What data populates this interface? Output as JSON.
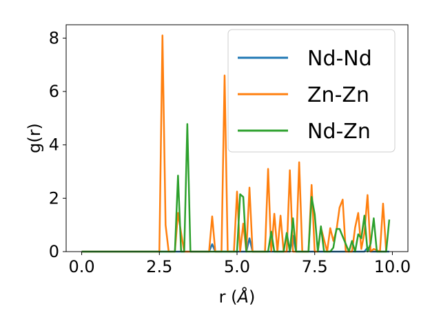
{
  "chart_data": {
    "type": "line",
    "title": "",
    "xlabel": "r (Å)",
    "xlabel_parts": {
      "prefix": "r (",
      "unit": "Å",
      "suffix": ")"
    },
    "ylabel": "g(r)",
    "xlim": [
      -0.5,
      10.5
    ],
    "ylim": [
      0,
      8.5
    ],
    "xticks": [
      0.0,
      2.5,
      5.0,
      7.5,
      10.0
    ],
    "xtick_labels": [
      "0.0",
      "2.5",
      "5.0",
      "7.5",
      "10.0"
    ],
    "yticks": [
      0,
      2,
      4,
      6,
      8
    ],
    "ytick_labels": [
      "0",
      "2",
      "4",
      "6",
      "8"
    ],
    "grid": false,
    "legend_position": "top-right",
    "series": [
      {
        "name": "Nd-Nd",
        "color": "#1f77b4",
        "x": [
          0,
          4.1,
          4.2,
          4.3,
          5.3,
          5.4,
          5.5,
          6.7,
          6.8,
          6.9,
          9.1,
          9.2,
          9.3,
          9.9
        ],
        "y": [
          0,
          0,
          0.28,
          0,
          0,
          0.5,
          0,
          0,
          0.6,
          0,
          0,
          0.15,
          0,
          0
        ]
      },
      {
        "name": "Zn-Zn",
        "color": "#ff7f0e",
        "x": [
          0,
          2.5,
          2.6,
          2.7,
          2.8,
          3.0,
          3.1,
          3.2,
          3.3,
          4.1,
          4.2,
          4.3,
          4.5,
          4.6,
          4.7,
          4.9,
          5.0,
          5.1,
          5.2,
          5.3,
          5.4,
          5.5,
          5.9,
          6.0,
          6.1,
          6.2,
          6.3,
          6.4,
          6.5,
          6.6,
          6.7,
          6.8,
          6.9,
          7.0,
          7.1,
          7.2,
          7.3,
          7.4,
          7.5,
          7.6,
          7.7,
          7.9,
          8.0,
          8.1,
          8.2,
          8.3,
          8.4,
          8.5,
          8.7,
          8.8,
          8.9,
          9.0,
          9.1,
          9.2,
          9.3,
          9.4,
          9.6,
          9.7,
          9.8
        ],
        "y": [
          0,
          0,
          8.1,
          1.0,
          0,
          0,
          1.45,
          0.7,
          0,
          0,
          1.32,
          0,
          0,
          6.6,
          0,
          0,
          2.25,
          0,
          1.05,
          0,
          2.4,
          0,
          0,
          3.1,
          0,
          1.42,
          0,
          1.35,
          0,
          0,
          3.05,
          0,
          0,
          3.35,
          0,
          0,
          0,
          2.5,
          0,
          0,
          0.9,
          0,
          0.88,
          0.4,
          0.8,
          1.65,
          1.95,
          0,
          0,
          0.9,
          1.45,
          0.1,
          0.7,
          2.12,
          0,
          0.1,
          0,
          1.8,
          0
        ]
      },
      {
        "name": "Nd-Zn",
        "color": "#2ca02c",
        "x": [
          0,
          3.0,
          3.1,
          3.2,
          3.3,
          3.4,
          3.5,
          4.9,
          5.0,
          5.1,
          5.2,
          5.3,
          5.4,
          6.0,
          6.1,
          6.2,
          6.5,
          6.6,
          6.7,
          6.8,
          6.9,
          7.2,
          7.3,
          7.4,
          7.5,
          7.6,
          7.7,
          7.8,
          8.0,
          8.1,
          8.2,
          8.3,
          8.6,
          8.7,
          8.8,
          8.9,
          9.0,
          9.1,
          9.2,
          9.3,
          9.4,
          9.5,
          9.6,
          9.7,
          9.8,
          9.9
        ],
        "y": [
          0,
          0,
          2.85,
          0,
          0,
          4.78,
          0,
          0,
          0,
          2.15,
          2.05,
          0,
          0,
          0,
          0.75,
          0,
          0,
          0.7,
          0,
          1.25,
          0,
          0,
          0,
          2.05,
          1.4,
          0,
          0.95,
          0,
          0,
          0.15,
          0.85,
          0.85,
          0,
          0.4,
          0,
          0.65,
          0.5,
          1.35,
          0,
          0.3,
          1.25,
          0,
          0,
          0,
          0,
          1.2
        ]
      }
    ]
  }
}
